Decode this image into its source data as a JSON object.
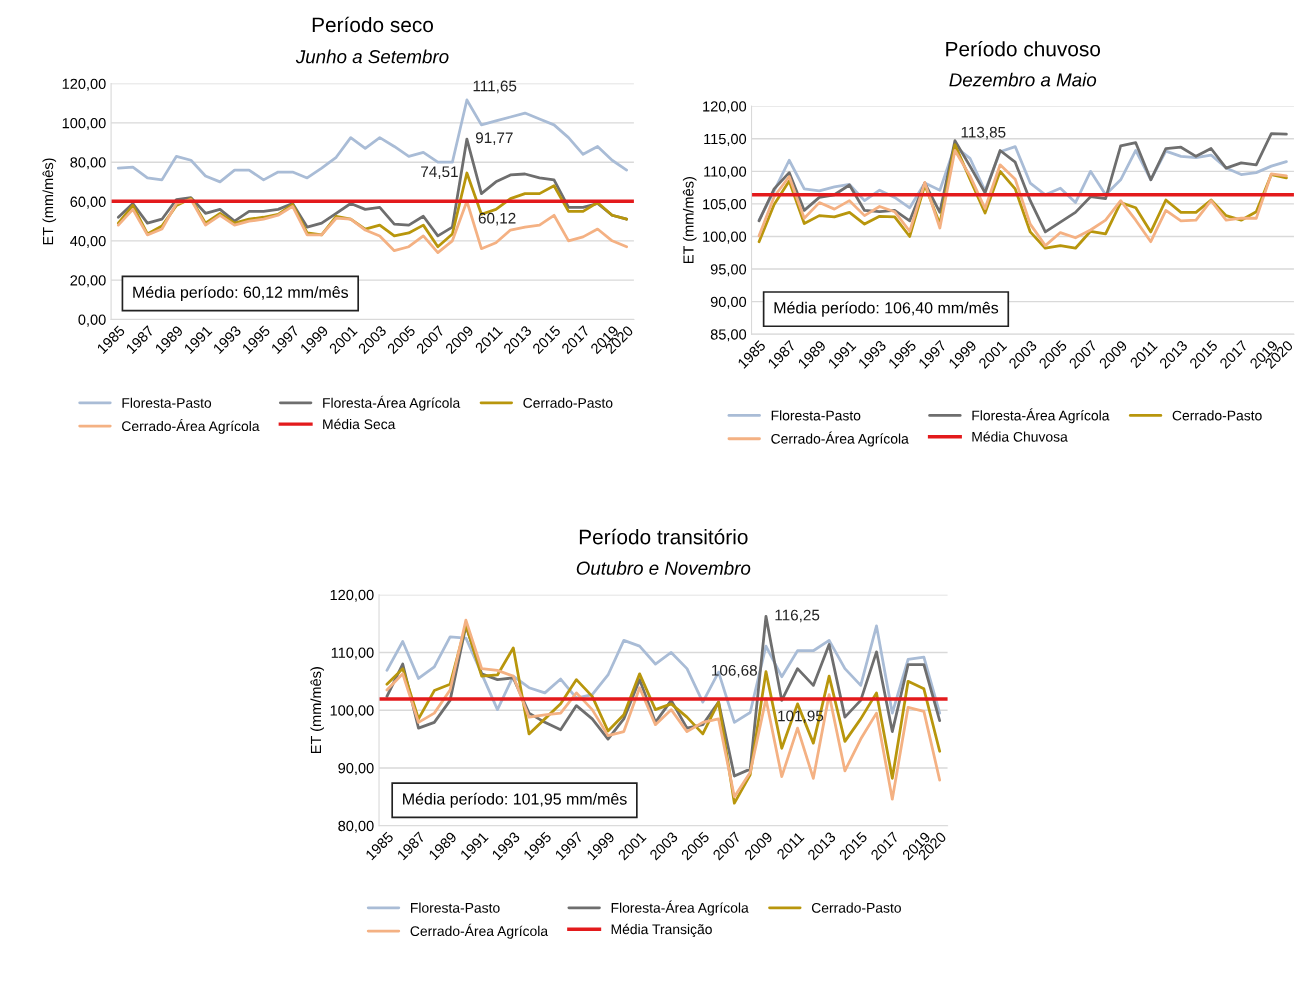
{
  "chart_data": [
    {
      "type": "line",
      "title": "Período seco",
      "subtitle": "Junho a Setembro",
      "ylabel": "ET (mm/mês)",
      "categories": [
        "1985",
        null,
        "1987",
        null,
        "1989",
        null,
        "1991",
        null,
        "1993",
        null,
        "1995",
        null,
        "1997",
        null,
        "1999",
        null,
        "2001",
        null,
        "2003",
        null,
        "2005",
        null,
        "2007",
        null,
        "2009",
        null,
        "2011",
        null,
        "2013",
        null,
        "2015",
        null,
        "2017",
        null,
        "2019",
        "2020"
      ],
      "series": [
        {
          "name": "Floresta-Pasto",
          "color": "#a9bcd6",
          "values": [
            77,
            77.5,
            72,
            71,
            83,
            81,
            73,
            70,
            76,
            76,
            71,
            75,
            75,
            72,
            77,
            82.5,
            92.5,
            87,
            92.5,
            88,
            83,
            85,
            80,
            80,
            111.65,
            99,
            101,
            103,
            105,
            102,
            99,
            92.5,
            84,
            88,
            81,
            76
          ],
          "value_labels": [
            null,
            null,
            null,
            null,
            null,
            null,
            null,
            null,
            null,
            null,
            null,
            null,
            null,
            null,
            null,
            null,
            null,
            null,
            null,
            null,
            null,
            null,
            null,
            null,
            "111,65",
            null,
            null,
            null,
            null,
            null,
            null,
            null,
            null,
            null,
            null,
            null
          ]
        },
        {
          "name": "Floresta-Área Agrícola",
          "color": "#6e6e6e",
          "values": [
            52,
            59,
            49,
            51,
            61,
            62,
            54,
            56,
            50,
            55,
            55,
            56,
            59,
            47,
            49,
            54,
            59,
            56,
            57,
            48.5,
            48,
            52.5,
            42.5,
            47,
            91.77,
            64,
            70,
            73.5,
            74,
            72,
            71,
            57,
            57,
            59,
            53,
            51
          ],
          "value_labels": [
            null,
            null,
            null,
            null,
            null,
            null,
            null,
            null,
            null,
            null,
            null,
            null,
            null,
            null,
            null,
            null,
            null,
            null,
            null,
            null,
            null,
            null,
            null,
            null,
            "91,77",
            null,
            null,
            null,
            null,
            null,
            null,
            null,
            null,
            null,
            null,
            null
          ]
        },
        {
          "name": "Cerrado-Pasto",
          "color": "#b8960c",
          "values": [
            49,
            58,
            43.5,
            47.5,
            58,
            61.5,
            49,
            54,
            49,
            51,
            52,
            53.5,
            58.5,
            44,
            43,
            52.5,
            51,
            46,
            48,
            42.5,
            44,
            48,
            37,
            43.5,
            74.51,
            53.5,
            56,
            61.5,
            64,
            64,
            68,
            55,
            55,
            59.5,
            53,
            51
          ],
          "value_labels": [
            null,
            null,
            null,
            null,
            null,
            null,
            null,
            null,
            null,
            null,
            null,
            null,
            null,
            null,
            null,
            null,
            null,
            null,
            null,
            null,
            null,
            null,
            null,
            null,
            "74,51",
            null,
            null,
            null,
            null,
            null,
            null,
            null,
            null,
            null,
            null,
            null
          ]
        },
        {
          "name": "Cerrado-Área Agrícola",
          "color": "#f4b183",
          "values": [
            48,
            56,
            43,
            46,
            59,
            61,
            48,
            53,
            48,
            50,
            51,
            53,
            57.5,
            43,
            43,
            51.5,
            51,
            45.5,
            42.5,
            35,
            37,
            42.5,
            34,
            40,
            60.12,
            36,
            39,
            45.5,
            47,
            48,
            53,
            40,
            42,
            46,
            40,
            37
          ],
          "value_labels": [
            null,
            null,
            null,
            null,
            null,
            null,
            null,
            null,
            null,
            null,
            null,
            null,
            null,
            null,
            null,
            null,
            null,
            null,
            null,
            null,
            null,
            null,
            null,
            null,
            "60,12",
            null,
            null,
            null,
            null,
            null,
            null,
            null,
            null,
            null,
            null,
            null
          ]
        }
      ],
      "ref_lines": [
        {
          "axis": "y",
          "value": 60.12,
          "label": "Média Seca",
          "color": "#e31a1c"
        }
      ],
      "annotations": [
        "Média período: 60,12 mm/mês"
      ],
      "ylim": [
        0,
        120
      ],
      "yticks": [
        {
          "value": 0,
          "label": "0,00"
        },
        {
          "value": 20,
          "label": "20,00"
        },
        {
          "value": 40,
          "label": "40,00"
        },
        {
          "value": 60,
          "label": "60,00"
        },
        {
          "value": 80,
          "label": "80,00"
        },
        {
          "value": 100,
          "label": "100,00"
        },
        {
          "value": 120,
          "label": "120,00"
        }
      ],
      "grid": "y",
      "legend": "bottom",
      "marker": "none",
      "line_style": "solid"
    },
    {
      "type": "line",
      "title": "Período chuvoso",
      "subtitle": "Dezembro a Maio",
      "ylabel": "ET (mm/mês)",
      "categories": [
        "1985",
        null,
        "1987",
        null,
        "1989",
        null,
        "1991",
        null,
        "1993",
        null,
        "1995",
        null,
        "1997",
        null,
        "1999",
        null,
        "2001",
        null,
        "2003",
        null,
        "2005",
        null,
        "2007",
        null,
        "2009",
        null,
        "2011",
        null,
        "2013",
        null,
        "2015",
        null,
        "2017",
        null,
        "2019",
        "2020"
      ],
      "series": [
        {
          "name": "Floresta-Pasto",
          "color": "#a9bcd6",
          "values": [
            102.5,
            107,
            111.7,
            107.3,
            107,
            107.6,
            108,
            105.5,
            107.1,
            106,
            104.4,
            108.2,
            107.1,
            113.85,
            112,
            107,
            113,
            113.8,
            108.2,
            106.4,
            107.4,
            105.2,
            110,
            106.4,
            108.7,
            113.2,
            108.7,
            113.1,
            112.3,
            112.1,
            112.5,
            110.5,
            109.5,
            109.8,
            110.8,
            111.5
          ],
          "value_labels": [
            null,
            null,
            null,
            null,
            null,
            null,
            null,
            null,
            null,
            null,
            null,
            null,
            null,
            "113,85",
            null,
            null,
            null,
            null,
            null,
            null,
            null,
            null,
            null,
            null,
            null,
            null,
            null,
            null,
            null,
            null,
            null,
            null,
            null,
            null,
            null,
            null
          ]
        },
        {
          "name": "Floresta-Área Agrícola",
          "color": "#6e6e6e",
          "values": [
            102.4,
            107.3,
            109.8,
            104,
            106,
            106.4,
            107.9,
            104,
            103.8,
            104,
            102.4,
            108.2,
            103.7,
            114.7,
            110.8,
            106.7,
            113.2,
            111.4,
            105.5,
            100.7,
            102.2,
            103.7,
            106.1,
            105.8,
            113.9,
            114.4,
            108.7,
            113.5,
            113.7,
            112.3,
            113.5,
            110.5,
            111.3,
            111,
            115.8,
            115.7
          ]
        },
        {
          "name": "Cerrado-Pasto",
          "color": "#b8960c",
          "values": [
            99.2,
            104.9,
            108.5,
            102,
            103.2,
            103,
            103.7,
            101.9,
            103.1,
            103,
            100,
            107.9,
            101.9,
            114.1,
            108.8,
            103.6,
            110,
            107.3,
            100.7,
            98.2,
            98.6,
            98.2,
            100.8,
            100.4,
            105.2,
            104.4,
            100.7,
            105.6,
            103.7,
            103.7,
            105.6,
            103.2,
            102.5,
            103.8,
            109.5,
            109
          ]
        },
        {
          "name": "Cerrado-Área Agrícola",
          "color": "#f4b183",
          "values": [
            100.1,
            106.1,
            109.2,
            102.8,
            105.2,
            104.2,
            105.5,
            103.2,
            104.6,
            103.8,
            100.8,
            108.3,
            101.3,
            113.2,
            109.3,
            104.3,
            111,
            108.8,
            101.9,
            98.6,
            100.6,
            99.8,
            101,
            102.5,
            105.5,
            102.5,
            99.2,
            104,
            102.4,
            102.5,
            105.5,
            102.5,
            102.8,
            102.8,
            109.6,
            109.3
          ]
        }
      ],
      "ref_lines": [
        {
          "axis": "y",
          "value": 106.4,
          "label": "Média Chuvosa",
          "color": "#e31a1c"
        }
      ],
      "annotations": [
        "Média período: 106,40 mm/mês"
      ],
      "ylim": [
        85,
        120
      ],
      "yticks": [
        {
          "value": 85,
          "label": "85,00"
        },
        {
          "value": 90,
          "label": "90,00"
        },
        {
          "value": 95,
          "label": "95,00"
        },
        {
          "value": 100,
          "label": "100,00"
        },
        {
          "value": 105,
          "label": "105,00"
        },
        {
          "value": 110,
          "label": "110,00"
        },
        {
          "value": 115,
          "label": "115,00"
        },
        {
          "value": 120,
          "label": "120,00"
        }
      ],
      "grid": "y",
      "legend": "bottom",
      "marker": "none",
      "line_style": "solid"
    },
    {
      "type": "line",
      "title": "Período transitório",
      "subtitle": "Outubro e Novembro",
      "ylabel": "ET (mm/mês)",
      "categories": [
        "1985",
        null,
        "1987",
        null,
        "1989",
        null,
        "1991",
        null,
        "1993",
        null,
        "1995",
        null,
        "1997",
        null,
        "1999",
        null,
        "2001",
        null,
        "2003",
        null,
        "2005",
        null,
        "2007",
        null,
        "2009",
        null,
        "2011",
        null,
        "2013",
        null,
        "2015",
        null,
        "2017",
        null,
        "2019",
        "2020"
      ],
      "series": [
        {
          "name": "Floresta-Pasto",
          "color": "#a9bcd6",
          "values": [
            106.9,
            111.9,
            105.5,
            107.5,
            112.7,
            112.5,
            106.3,
            100.1,
            105.9,
            103.9,
            103,
            105.4,
            102.1,
            102.7,
            106.1,
            112.1,
            111.1,
            108,
            110,
            107.2,
            101.4,
            106.6,
            97.9,
            99.6,
            111.1,
            105.8,
            110.3,
            110.3,
            112.1,
            107.2,
            104.3,
            114.6,
            99.5,
            108.8,
            109.2,
            99.5
          ]
        },
        {
          "name": "Floresta-Área Agrícola",
          "color": "#6e6e6e",
          "values": [
            102.4,
            108,
            96.9,
            97.9,
            101.7,
            114.6,
            106.3,
            105.3,
            105.6,
            99.5,
            97.9,
            96.6,
            100.8,
            98.5,
            95,
            98.5,
            105.3,
            97.9,
            101.7,
            96.9,
            97.5,
            101.4,
            88.6,
            89.8,
            116.25,
            101.7,
            107.2,
            104.3,
            111.4,
            98.8,
            101.7,
            110.1,
            96.3,
            107.9,
            107.9,
            98.2
          ],
          "value_labels": [
            null,
            null,
            null,
            null,
            null,
            null,
            null,
            null,
            null,
            null,
            null,
            null,
            null,
            null,
            null,
            null,
            null,
            null,
            null,
            null,
            null,
            null,
            null,
            null,
            "116,25",
            null,
            null,
            null,
            null,
            null,
            null,
            null,
            null,
            null,
            null,
            null
          ]
        },
        {
          "name": "Cerrado-Pasto",
          "color": "#b8960c",
          "values": [
            104.5,
            107.2,
            98.5,
            103.4,
            104.5,
            114.8,
            105.9,
            106.1,
            110.8,
            95.9,
            98.5,
            101.1,
            105.3,
            102.4,
            96.4,
            99.2,
            106.3,
            100.1,
            101.1,
            98.8,
            95.9,
            101.4,
            83.9,
            88.8,
            106.68,
            93.4,
            101.1,
            94.3,
            105.9,
            94.6,
            98.5,
            103,
            88.2,
            105,
            103.7,
            92.9
          ],
          "value_labels": [
            null,
            null,
            null,
            null,
            null,
            null,
            null,
            null,
            null,
            null,
            null,
            null,
            null,
            null,
            null,
            null,
            null,
            null,
            null,
            null,
            null,
            null,
            null,
            null,
            "106,68",
            null,
            null,
            null,
            null,
            null,
            null,
            null,
            null,
            null,
            null,
            null
          ]
        },
        {
          "name": "Cerrado-Área Agrícola",
          "color": "#f4b183",
          "values": [
            103.5,
            106.3,
            97.9,
            99.5,
            103.5,
            115.6,
            107.2,
            106.9,
            105.9,
            98.8,
            99.2,
            99.5,
            103,
            100.1,
            95.6,
            96.3,
            103.9,
            97.5,
            100.1,
            96.3,
            97.9,
            98.5,
            85,
            89.2,
            101.95,
            88.5,
            96.9,
            88.2,
            102.7,
            89.5,
            95,
            99.5,
            84.6,
            100.5,
            99.8,
            87.9
          ],
          "value_labels": [
            null,
            null,
            null,
            null,
            null,
            null,
            null,
            null,
            null,
            null,
            null,
            null,
            null,
            null,
            null,
            null,
            null,
            null,
            null,
            null,
            null,
            null,
            null,
            null,
            "101,95",
            null,
            null,
            null,
            null,
            null,
            null,
            null,
            null,
            null,
            null,
            null
          ]
        }
      ],
      "ref_lines": [
        {
          "axis": "y",
          "value": 101.95,
          "label": "Média Transição",
          "color": "#e31a1c"
        }
      ],
      "annotations": [
        "Média período: 101,95 mm/mês"
      ],
      "ylim": [
        80,
        120
      ],
      "yticks": [
        {
          "value": 80,
          "label": "80,00"
        },
        {
          "value": 90,
          "label": "90,00"
        },
        {
          "value": 100,
          "label": "100,00"
        },
        {
          "value": 110,
          "label": "110,00"
        },
        {
          "value": 120,
          "label": "120,00"
        }
      ],
      "grid": "y",
      "legend": "bottom",
      "marker": "none",
      "line_style": "solid"
    }
  ]
}
